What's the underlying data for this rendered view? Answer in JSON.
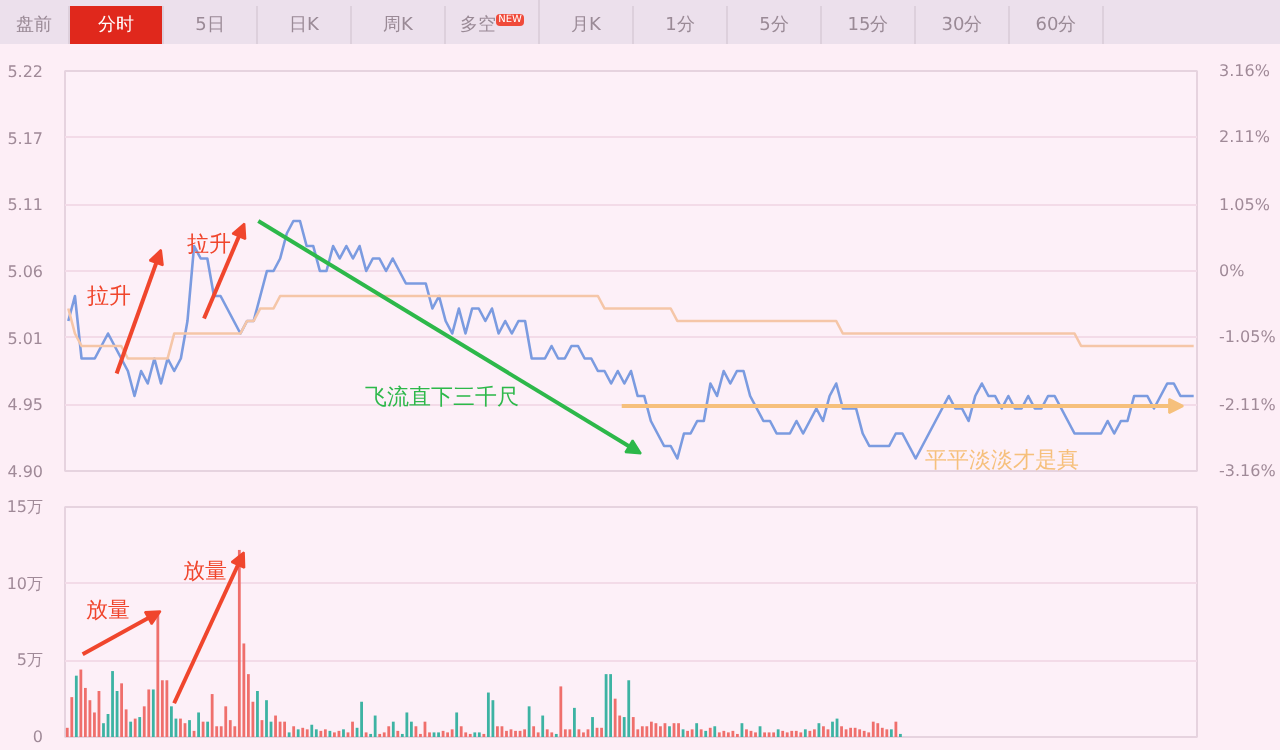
{
  "chart_data": [
    {
      "type": "line",
      "categories": [
        null,
        null,
        null,
        null,
        null,
        null,
        null,
        null,
        null,
        null,
        null,
        null,
        null,
        null,
        null,
        null,
        null,
        null,
        null,
        null,
        null,
        null,
        null,
        null,
        null,
        null,
        null,
        null,
        null,
        null,
        null,
        null,
        null,
        null,
        null,
        null,
        null,
        null,
        null,
        null,
        null,
        null,
        null,
        null,
        null,
        null,
        null,
        null,
        null,
        null,
        null,
        null,
        null,
        null,
        null,
        null,
        null,
        null,
        null,
        null,
        null,
        null,
        null,
        null,
        null,
        null,
        null,
        null,
        null,
        null,
        null,
        null,
        null,
        null,
        null,
        null,
        null,
        null,
        null,
        null,
        null,
        null,
        null,
        null,
        null,
        null,
        null,
        null,
        null,
        null,
        null,
        null,
        null,
        null,
        null,
        null,
        null,
        null,
        null,
        null,
        null,
        null,
        null,
        null,
        null,
        null,
        null,
        null,
        null,
        null,
        null,
        null,
        null,
        null,
        null,
        null,
        null,
        null,
        null,
        null,
        null,
        null,
        null,
        null,
        null,
        null,
        null,
        null,
        null,
        null,
        null,
        null,
        null,
        null,
        null,
        null,
        null,
        null,
        null,
        null,
        null,
        null,
        null,
        null,
        null,
        null,
        null,
        null,
        null,
        null,
        null,
        null,
        null,
        null,
        null,
        null,
        null,
        null,
        null,
        null,
        null,
        null,
        null,
        null,
        null,
        null,
        null,
        null,
        null,
        null,
        null
      ],
      "series": [
        {
          "color": "#7b9be0",
          "values": [
            5.02,
            5.04,
            4.99,
            4.99,
            4.99,
            5.0,
            5.01,
            5.0,
            4.99,
            4.98,
            4.96,
            4.98,
            4.97,
            4.99,
            4.97,
            4.99,
            4.98,
            4.99,
            5.02,
            5.08,
            5.07,
            5.07,
            5.04,
            5.04,
            5.03,
            5.02,
            5.01,
            5.02,
            5.02,
            5.04,
            5.06,
            5.06,
            5.07,
            5.09,
            5.1,
            5.1,
            5.08,
            5.08,
            5.06,
            5.06,
            5.08,
            5.07,
            5.08,
            5.07,
            5.08,
            5.06,
            5.07,
            5.07,
            5.06,
            5.07,
            5.06,
            5.05,
            5.05,
            5.05,
            5.05,
            5.03,
            5.04,
            5.02,
            5.01,
            5.03,
            5.01,
            5.03,
            5.03,
            5.02,
            5.03,
            5.01,
            5.02,
            5.01,
            5.02,
            5.02,
            4.99,
            4.99,
            4.99,
            5.0,
            4.99,
            4.99,
            5.0,
            5.0,
            4.99,
            4.99,
            4.98,
            4.98,
            4.97,
            4.98,
            4.97,
            4.98,
            4.96,
            4.96,
            4.94,
            4.93,
            4.92,
            4.92,
            4.91,
            4.93,
            4.93,
            4.94,
            4.94,
            4.97,
            4.96,
            4.98,
            4.97,
            4.98,
            4.98,
            4.96,
            4.95,
            4.94,
            4.94,
            4.93,
            4.93,
            4.93,
            4.94,
            4.93,
            4.94,
            4.95,
            4.94,
            4.96,
            4.97,
            4.95,
            4.95,
            4.95,
            4.93,
            4.92,
            4.92,
            4.92,
            4.92,
            4.93,
            4.93,
            4.92,
            4.91,
            4.92,
            4.93,
            4.94,
            4.95,
            4.96,
            4.95,
            4.95,
            4.94,
            4.96,
            4.97,
            4.96,
            4.96,
            4.95,
            4.96,
            4.95,
            4.95,
            4.96,
            4.95,
            4.95,
            4.96,
            4.96,
            4.95,
            4.94,
            4.93,
            4.93,
            4.93,
            4.93,
            4.93,
            4.94,
            4.93,
            4.94,
            4.94,
            4.96,
            4.96,
            4.96,
            4.95,
            4.96,
            4.97,
            4.97,
            4.96,
            4.96,
            4.96
          ]
        },
        {
          "color": "#f5c6a8",
          "values": [
            5.03,
            5.01,
            5.0,
            5.0,
            5.0,
            5.0,
            5.0,
            5.0,
            5.0,
            4.99,
            4.99,
            4.99,
            4.99,
            4.99,
            4.99,
            4.99,
            5.01,
            5.01,
            5.01,
            5.01,
            5.01,
            5.01,
            5.01,
            5.01,
            5.01,
            5.01,
            5.01,
            5.02,
            5.02,
            5.03,
            5.03,
            5.03,
            5.04,
            5.04,
            5.04,
            5.04,
            5.04,
            5.04,
            5.04,
            5.04,
            5.04,
            5.04,
            5.04,
            5.04,
            5.04,
            5.04,
            5.04,
            5.04,
            5.04,
            5.04,
            5.04,
            5.04,
            5.04,
            5.04,
            5.04,
            5.04,
            5.04,
            5.04,
            5.04,
            5.04,
            5.04,
            5.04,
            5.04,
            5.04,
            5.04,
            5.04,
            5.04,
            5.04,
            5.04,
            5.04,
            5.04,
            5.04,
            5.04,
            5.04,
            5.04,
            5.04,
            5.04,
            5.04,
            5.04,
            5.04,
            5.04,
            5.03,
            5.03,
            5.03,
            5.03,
            5.03,
            5.03,
            5.03,
            5.03,
            5.03,
            5.03,
            5.03,
            5.02,
            5.02,
            5.02,
            5.02,
            5.02,
            5.02,
            5.02,
            5.02,
            5.02,
            5.02,
            5.02,
            5.02,
            5.02,
            5.02,
            5.02,
            5.02,
            5.02,
            5.02,
            5.02,
            5.02,
            5.02,
            5.02,
            5.02,
            5.02,
            5.02,
            5.01,
            5.01,
            5.01,
            5.01,
            5.01,
            5.01,
            5.01,
            5.01,
            5.01,
            5.01,
            5.01,
            5.01,
            5.01,
            5.01,
            5.01,
            5.01,
            5.01,
            5.01,
            5.01,
            5.01,
            5.01,
            5.01,
            5.01,
            5.01,
            5.01,
            5.01,
            5.01,
            5.01,
            5.01,
            5.01,
            5.01,
            5.01,
            5.01,
            5.01,
            5.01,
            5.01,
            5.0,
            5.0,
            5.0,
            5.0,
            5.0,
            5.0,
            5.0,
            5.0,
            5.0,
            5.0,
            5.0,
            5.0,
            5.0,
            5.0,
            5.0,
            5.0,
            5.0,
            5.0
          ]
        }
      ],
      "ylim": [
        4.9,
        5.22
      ],
      "yticks": [
        {
          "value": 4.9,
          "label": "4.90"
        },
        {
          "value": 4.9533,
          "label": "4.95"
        },
        {
          "value": 5.0067,
          "label": "5.01"
        },
        {
          "value": 5.06,
          "label": "5.06"
        },
        {
          "value": 5.1133,
          "label": "5.11"
        },
        {
          "value": 5.1667,
          "label": "5.17"
        },
        {
          "value": 5.22,
          "label": "5.22"
        }
      ],
      "y2lim": [
        -3.16,
        3.16
      ],
      "y2ticks": [
        {
          "value": -3.16,
          "label": "-3.16%"
        },
        {
          "value": -2.11,
          "label": "-2.11%"
        },
        {
          "value": -1.05,
          "label": "-1.05%"
        },
        {
          "value": 0,
          "label": "0%"
        },
        {
          "value": 1.05,
          "label": "1.05%"
        },
        {
          "value": 2.11,
          "label": "2.11%"
        },
        {
          "value": 3.16,
          "label": "3.16%"
        }
      ],
      "grid": "y",
      "annotations": [
        "盘前",
        "分时",
        "5日",
        "日K",
        "周K",
        "多空",
        "NEW",
        "月K",
        "1分",
        "5分",
        "15分",
        "30分",
        "60分",
        "拉升",
        "拉升",
        "飞流直下三千尺",
        "平平淡淡才是真"
      ]
    },
    {
      "type": "bar",
      "categories": [
        null,
        null,
        null,
        null,
        null,
        null,
        null,
        null,
        null,
        null,
        null,
        null,
        null,
        null,
        null,
        null,
        null,
        null,
        null,
        null,
        null,
        null,
        null,
        null,
        null,
        null,
        null,
        null,
        null,
        null,
        null,
        null,
        null,
        null,
        null,
        null,
        null,
        null,
        null,
        null,
        null,
        null,
        null,
        null,
        null,
        null,
        null,
        null,
        null,
        null,
        null,
        null,
        null,
        null,
        null,
        null,
        null,
        null,
        null,
        null,
        null,
        null,
        null,
        null,
        null,
        null,
        null,
        null,
        null,
        null,
        null,
        null,
        null,
        null,
        null,
        null,
        null,
        null,
        null,
        null,
        null,
        null,
        null,
        null,
        null,
        null,
        null,
        null,
        null,
        null,
        null,
        null,
        null,
        null,
        null,
        null,
        null,
        null,
        null,
        null,
        null,
        null,
        null,
        null,
        null,
        null,
        null,
        null,
        null,
        null,
        null,
        null,
        null,
        null,
        null,
        null,
        null,
        null,
        null,
        null,
        null,
        null,
        null,
        null,
        null,
        null,
        null,
        null,
        null,
        null,
        null,
        null,
        null,
        null,
        null,
        null,
        null,
        null,
        null,
        null,
        null,
        null,
        null,
        null,
        null,
        null,
        null,
        null,
        null,
        null,
        null,
        null,
        null,
        null,
        null,
        null,
        null,
        null,
        null,
        null,
        null,
        null,
        null,
        null,
        null,
        null,
        null,
        null,
        null,
        null,
        null,
        null,
        null,
        null,
        null,
        null,
        null,
        null,
        null,
        null,
        null,
        null,
        null,
        null,
        null,
        null,
        null,
        null,
        null,
        null,
        null,
        null,
        null,
        null,
        null,
        null,
        null,
        null,
        null,
        null,
        null,
        null,
        null,
        null,
        null,
        null,
        null,
        null,
        null,
        null,
        null,
        null,
        null,
        null,
        null,
        null,
        null,
        null,
        null,
        null,
        null,
        null,
        null,
        null,
        null,
        null,
        null,
        null,
        null,
        null,
        null,
        null,
        null,
        null,
        null,
        null,
        null,
        null,
        null,
        null,
        null,
        null,
        null,
        null,
        null,
        null,
        null,
        null,
        null,
        null
      ],
      "values": [
        0.6,
        2.6,
        4.0,
        4.4,
        3.2,
        2.4,
        1.6,
        3.0,
        0.9,
        1.5,
        4.3,
        3.0,
        3.5,
        1.8,
        1.0,
        1.2,
        1.3,
        2.0,
        3.1,
        3.1,
        8.1,
        3.7,
        3.7,
        2.0,
        1.2,
        1.2,
        0.9,
        1.1,
        0.4,
        1.6,
        1.0,
        1.0,
        2.8,
        0.7,
        0.7,
        2.0,
        1.1,
        0.7,
        12.2,
        6.1,
        4.1,
        2.3,
        3.0,
        1.1,
        2.4,
        1.0,
        1.4,
        1.0,
        1.0,
        0.3,
        0.7,
        0.5,
        0.6,
        0.5,
        0.8,
        0.5,
        0.4,
        0.5,
        0.4,
        0.3,
        0.4,
        0.5,
        0.3,
        1.0,
        0.6,
        2.3,
        0.3,
        0.2,
        1.4,
        0.2,
        0.3,
        0.7,
        1.0,
        0.4,
        0.2,
        1.6,
        1.0,
        0.7,
        0.2,
        1.0,
        0.3,
        0.3,
        0.3,
        0.4,
        0.3,
        0.5,
        1.6,
        0.7,
        0.3,
        0.2,
        0.3,
        0.3,
        0.2,
        2.9,
        2.4,
        0.7,
        0.7,
        0.4,
        0.5,
        0.4,
        0.4,
        0.5,
        2.0,
        0.7,
        0.3,
        1.4,
        0.5,
        0.3,
        0.2,
        3.3,
        0.5,
        0.5,
        1.9,
        0.5,
        0.3,
        0.5,
        1.3,
        0.6,
        0.6,
        4.1,
        4.1,
        2.5,
        1.4,
        1.3,
        3.7,
        1.3,
        0.5,
        0.7,
        0.7,
        1.0,
        0.9,
        0.7,
        0.9,
        0.7,
        0.9,
        0.9,
        0.5,
        0.4,
        0.5,
        0.9,
        0.5,
        0.4,
        0.6,
        0.7,
        0.3,
        0.4,
        0.3,
        0.4,
        0.2,
        0.9,
        0.5,
        0.4,
        0.3,
        0.7,
        0.3,
        0.3,
        0.3,
        0.5,
        0.4,
        0.3,
        0.4,
        0.4,
        0.3,
        0.5,
        0.4,
        0.5,
        0.9,
        0.7,
        0.5,
        1.0,
        1.2,
        0.7,
        0.5,
        0.6,
        0.6,
        0.5,
        0.4,
        0.3,
        1.0,
        0.9,
        0.6,
        0.5,
        0.5,
        1.0,
        0.2,
        null,
        null,
        null,
        null,
        null,
        null,
        null,
        null,
        null,
        null,
        null,
        null,
        null,
        null,
        null,
        null,
        null,
        null,
        null,
        null,
        null,
        null,
        null,
        null,
        null,
        null,
        null,
        null,
        null,
        null,
        null,
        null,
        null,
        null,
        null,
        null,
        null,
        null,
        null,
        null,
        null,
        null,
        null,
        null,
        null,
        null,
        null,
        null,
        null,
        null,
        null,
        null,
        null,
        null,
        null,
        null,
        null,
        null,
        null,
        null,
        null,
        null,
        null,
        null,
        null
      ],
      "colors": [
        "#ef6f6c",
        "#ef6f6c",
        "#3db3a3",
        "#ef6f6c",
        "#ef6f6c",
        "#ef6f6c",
        "#ef6f6c",
        "#ef6f6c",
        "#3db3a3",
        "#3db3a3",
        "#3db3a3",
        "#3db3a3",
        "#ef6f6c",
        "#ef6f6c",
        "#3db3a3",
        "#ef6f6c",
        "#3db3a3",
        "#ef6f6c",
        "#ef6f6c",
        "#3db3a3",
        "#ef6f6c",
        "#ef6f6c",
        "#ef6f6c",
        "#3db3a3",
        "#3db3a3",
        "#ef6f6c",
        "#ef6f6c",
        "#3db3a3",
        "#ef6f6c",
        "#3db3a3",
        "#ef6f6c",
        "#3db3a3",
        "#ef6f6c",
        "#ef6f6c",
        "#ef6f6c",
        "#ef6f6c",
        "#ef6f6c",
        "#ef6f6c",
        "#ef6f6c",
        "#ef6f6c",
        "#ef6f6c",
        "#ef6f6c",
        "#3db3a3",
        "#ef6f6c",
        "#3db3a3",
        "#3db3a3",
        "#ef6f6c",
        "#ef6f6c",
        "#ef6f6c",
        "#3db3a3",
        "#ef6f6c",
        "#3db3a3",
        "#ef6f6c",
        "#ef6f6c",
        "#3db3a3",
        "#3db3a3",
        "#ef6f6c",
        "#ef6f6c",
        "#3db3a3",
        "#ef6f6c",
        "#ef6f6c",
        "#3db3a3",
        "#ef6f6c",
        "#ef6f6c",
        "#3db3a3",
        "#3db3a3",
        "#ef6f6c",
        "#3db3a3",
        "#3db3a3",
        "#ef6f6c",
        "#ef6f6c",
        "#ef6f6c",
        "#3db3a3",
        "#ef6f6c",
        "#3db3a3",
        "#3db3a3",
        "#3db3a3",
        "#ef6f6c",
        "#ef6f6c",
        "#ef6f6c",
        "#ef6f6c",
        "#3db3a3",
        "#3db3a3",
        "#ef6f6c",
        "#ef6f6c",
        "#ef6f6c",
        "#3db3a3",
        "#ef6f6c",
        "#ef6f6c",
        "#ef6f6c",
        "#3db3a3",
        "#3db3a3",
        "#ef6f6c",
        "#3db3a3",
        "#3db3a3",
        "#ef6f6c",
        "#ef6f6c",
        "#ef6f6c",
        "#ef6f6c",
        "#ef6f6c",
        "#ef6f6c",
        "#ef6f6c",
        "#3db3a3",
        "#ef6f6c",
        "#ef6f6c",
        "#3db3a3",
        "#ef6f6c",
        "#ef6f6c",
        "#3db3a3",
        "#ef6f6c",
        "#ef6f6c",
        "#ef6f6c",
        "#3db3a3",
        "#ef6f6c",
        "#ef6f6c",
        "#ef6f6c",
        "#3db3a3",
        "#ef6f6c",
        "#ef6f6c",
        "#3db3a3",
        "#3db3a3",
        "#ef6f6c",
        "#ef6f6c",
        "#3db3a3",
        "#3db3a3",
        "#ef6f6c",
        "#ef6f6c",
        "#ef6f6c",
        "#ef6f6c",
        "#ef6f6c",
        "#ef6f6c",
        "#ef6f6c",
        "#ef6f6c",
        "#3db3a3",
        "#ef6f6c",
        "#ef6f6c",
        "#3db3a3",
        "#ef6f6c",
        "#ef6f6c",
        "#3db3a3",
        "#ef6f6c",
        "#3db3a3",
        "#ef6f6c",
        "#3db3a3",
        "#ef6f6c",
        "#ef6f6c",
        "#ef6f6c",
        "#ef6f6c",
        "#ef6f6c",
        "#3db3a3",
        "#ef6f6c",
        "#ef6f6c",
        "#ef6f6c",
        "#3db3a3",
        "#ef6f6c",
        "#ef6f6c",
        "#ef6f6c",
        "#3db3a3",
        "#ef6f6c",
        "#ef6f6c",
        "#ef6f6c",
        "#ef6f6c",
        "#ef6f6c",
        "#3db3a3",
        "#ef6f6c",
        "#ef6f6c",
        "#3db3a3",
        "#ef6f6c",
        "#ef6f6c",
        "#3db3a3",
        "#3db3a3",
        "#ef6f6c",
        "#ef6f6c",
        "#ef6f6c",
        "#ef6f6c",
        "#ef6f6c",
        "#ef6f6c",
        "#ef6f6c",
        "#ef6f6c",
        "#ef6f6c",
        "#ef6f6c",
        "#ef6f6c",
        "#3db3a3",
        "#ef6f6c",
        "#3db3a3",
        null,
        null,
        null,
        null,
        null,
        null,
        null,
        null,
        null,
        null,
        null,
        null,
        null,
        null,
        null,
        null,
        null,
        null,
        null,
        null,
        null,
        null,
        null,
        null,
        null,
        null,
        null,
        null,
        null,
        null,
        null,
        null,
        null,
        null,
        null,
        null,
        null,
        null,
        null,
        null,
        null,
        null,
        null,
        null,
        null,
        null,
        null,
        null,
        null,
        null,
        null,
        null,
        null,
        null,
        null,
        null,
        null,
        null,
        null,
        null,
        null,
        null,
        null,
        null,
        null
      ],
      "ylim": [
        0,
        15
      ],
      "yticks": [
        0,
        {
          "value": 5,
          "label": "5万"
        },
        {
          "value": 10,
          "label": "10万"
        },
        {
          "value": 15,
          "label": "15万"
        }
      ],
      "grid": "y",
      "annotations": [
        "放量",
        "放量"
      ]
    }
  ]
}
